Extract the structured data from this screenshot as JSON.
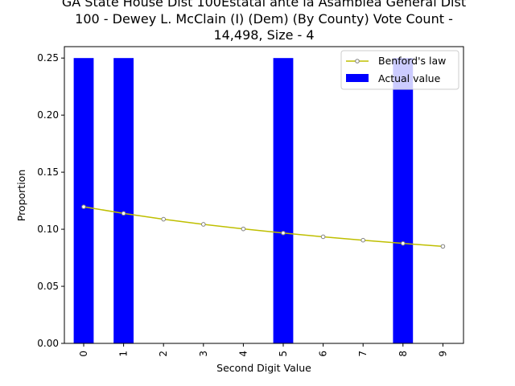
{
  "chart_data": {
    "type": "bar",
    "title_lines": [
      "GA State House Dist 100Estatal ante la Asamblea General Dist",
      "100 - Dewey L. McClain (I) (Dem) (By County) Vote Count -",
      "14,498, Size - 4"
    ],
    "xlabel": "Second Digit Value",
    "ylabel": "Proportion",
    "categories": [
      "0",
      "1",
      "2",
      "3",
      "4",
      "5",
      "6",
      "7",
      "8",
      "9"
    ],
    "ylim": [
      0,
      0.26
    ],
    "yticks": [
      "0.00",
      "0.05",
      "0.10",
      "0.15",
      "0.20",
      "0.25"
    ],
    "legend_position": "top-right",
    "series": [
      {
        "name": "Actual value",
        "kind": "bar",
        "color": "#0000ff",
        "values": [
          0.25,
          0.25,
          0,
          0,
          0,
          0.25,
          0,
          0,
          0.25,
          0
        ]
      },
      {
        "name": "Benford's law",
        "kind": "line",
        "color": "#bfbf00",
        "values": [
          0.1197,
          0.1139,
          0.1088,
          0.1043,
          0.1003,
          0.0967,
          0.0934,
          0.0904,
          0.0876,
          0.085
        ]
      }
    ]
  }
}
